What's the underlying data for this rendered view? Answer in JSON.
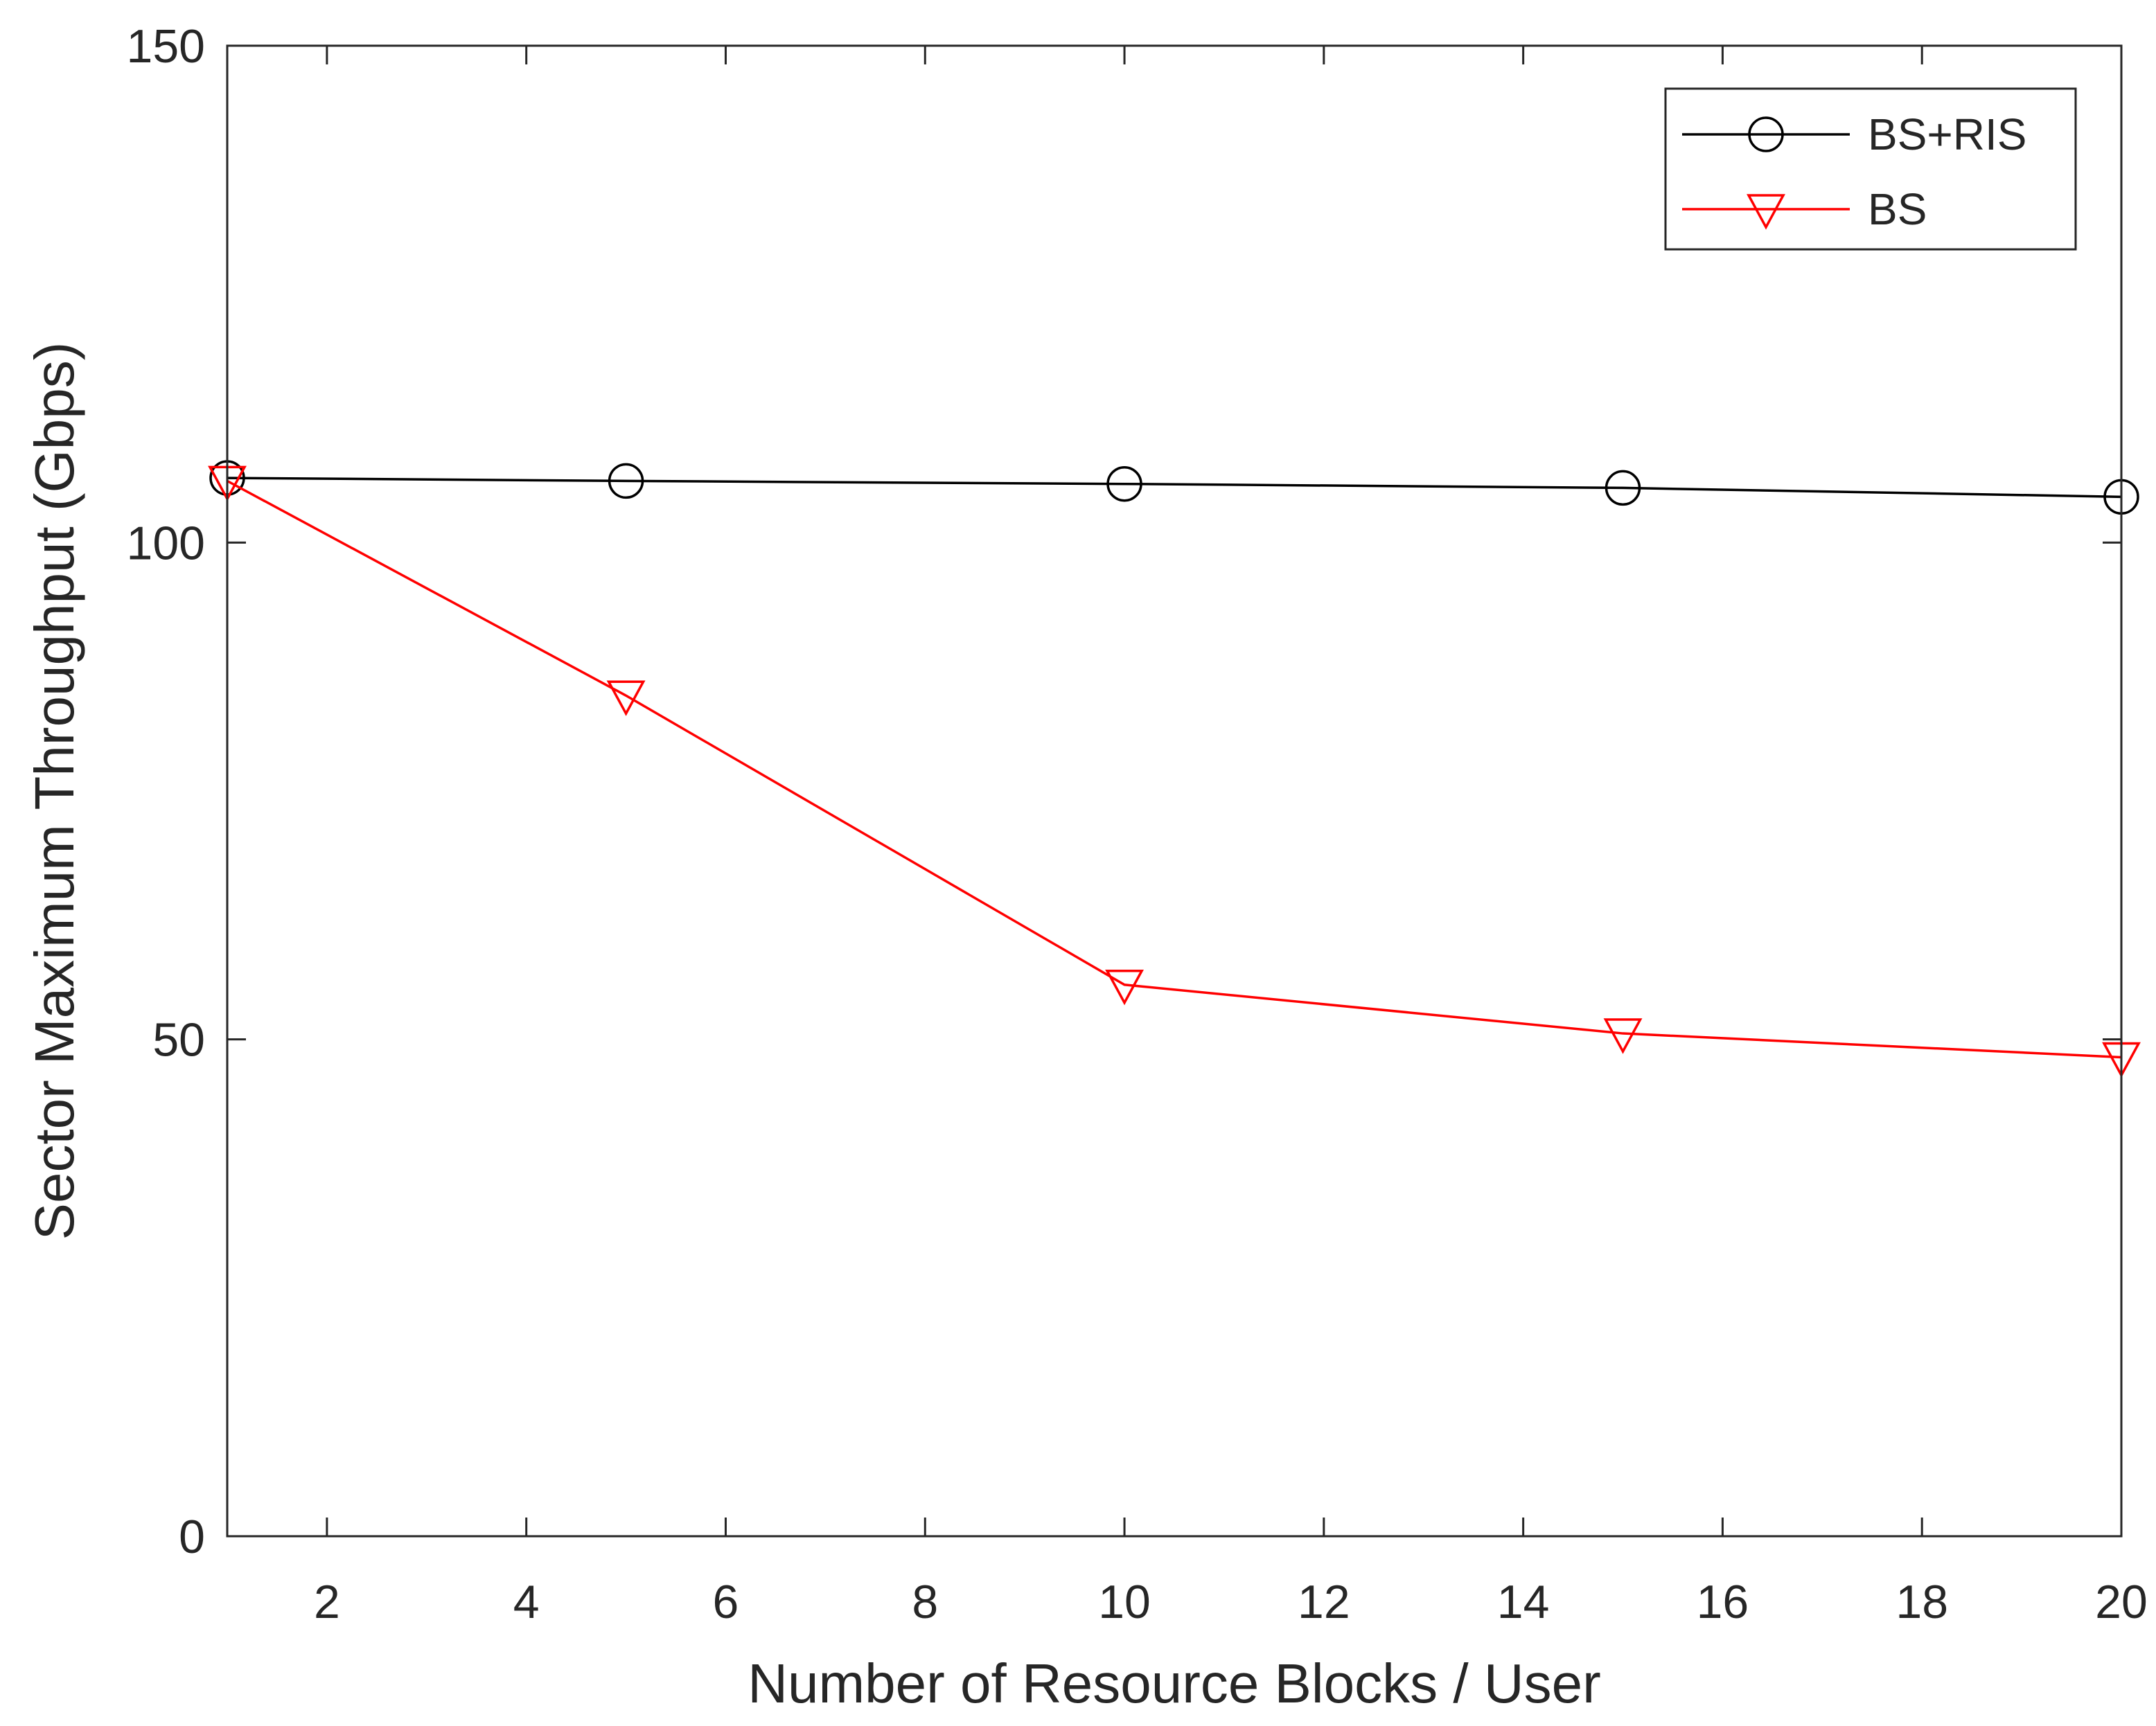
{
  "chart_data": {
    "type": "line",
    "title": "",
    "xlabel": "Number of Resource Blocks / User",
    "ylabel": "Sector Maximum Throughput (Gbps)",
    "xlim": [
      1,
      20
    ],
    "ylim": [
      0,
      150
    ],
    "xticks": [
      2,
      4,
      6,
      8,
      10,
      12,
      14,
      16,
      18,
      20
    ],
    "yticks": [
      0,
      50,
      100,
      150
    ],
    "grid": false,
    "legend_position": "top-right",
    "series": [
      {
        "name": "BS+RIS",
        "color": "#000000",
        "marker": "circle",
        "x": [
          1,
          5,
          10,
          15,
          20
        ],
        "y": [
          106.5,
          106.2,
          105.9,
          105.5,
          104.6
        ]
      },
      {
        "name": "BS",
        "color": "#ff0000",
        "marker": "triangle-down",
        "x": [
          1,
          5,
          10,
          15,
          20
        ],
        "y": [
          106.2,
          84.6,
          55.5,
          50.6,
          48.2
        ]
      }
    ]
  }
}
